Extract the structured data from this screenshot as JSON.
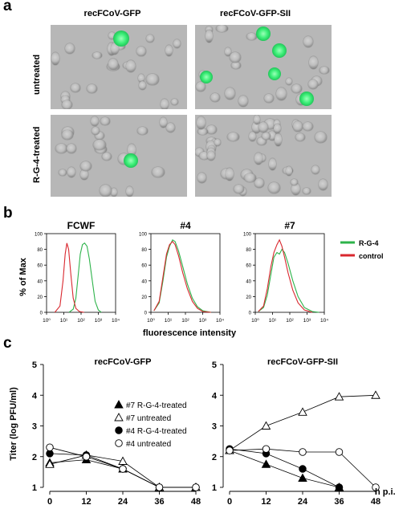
{
  "panel_a": {
    "letter": "a",
    "columns": [
      "recFCoV-GFP",
      "recFCoV-GFP-SII"
    ],
    "rows": [
      "untreated",
      "R-G-4-treated"
    ]
  },
  "panel_b": {
    "letter": "b",
    "ylabel": "% of Max",
    "xlabel": "fluorescence intensity",
    "legend": [
      {
        "name": "R-G-4",
        "color": "#2db34a"
      },
      {
        "name": "control",
        "color": "#d9272e"
      }
    ]
  },
  "panel_c": {
    "letter": "c",
    "ylabel": "Titer (log PFU/ml)",
    "xunit": "h p.i.",
    "legend": [
      "#7 R-G-4-treated",
      "#7 untreated",
      "#4 R-G-4-treated",
      "#4 untreated"
    ]
  },
  "chart_data": [
    {
      "type": "line",
      "title": "FCWF",
      "xscale": "log",
      "xlim": [
        1,
        10000
      ],
      "ylim": [
        0,
        100
      ],
      "yticks": [
        "0",
        "20",
        "40",
        "60",
        "80",
        "100"
      ],
      "xticks": [
        "10^0",
        "10^1",
        "10^2",
        "10^3",
        "10^4"
      ],
      "series": [
        {
          "name": "R-G-4",
          "color": "#2db34a",
          "points": [
            [
              20,
              0
            ],
            [
              35,
              4
            ],
            [
              50,
              18
            ],
            [
              70,
              50
            ],
            [
              90,
              74
            ],
            [
              120,
              86
            ],
            [
              160,
              88
            ],
            [
              220,
              84
            ],
            [
              300,
              68
            ],
            [
              450,
              40
            ],
            [
              650,
              14
            ],
            [
              1000,
              3
            ],
            [
              1500,
              0
            ]
          ]
        },
        {
          "name": "control",
          "color": "#d9272e",
          "points": [
            [
              3,
              0
            ],
            [
              6,
              8
            ],
            [
              9,
              40
            ],
            [
              12,
              74
            ],
            [
              15,
              88
            ],
            [
              19,
              80
            ],
            [
              25,
              50
            ],
            [
              35,
              18
            ],
            [
              50,
              5
            ],
            [
              80,
              1
            ],
            [
              150,
              0
            ]
          ]
        }
      ]
    },
    {
      "type": "line",
      "title": "#4",
      "xscale": "log",
      "xlim": [
        1,
        10000
      ],
      "ylim": [
        0,
        100
      ],
      "yticks": [
        "0",
        "20",
        "40",
        "60",
        "80",
        "100"
      ],
      "xticks": [
        "10^0",
        "10^1",
        "10^2",
        "10^3",
        "10^4"
      ],
      "series": [
        {
          "name": "R-G-4",
          "color": "#2db34a",
          "points": [
            [
              1.5,
              2
            ],
            [
              3,
              12
            ],
            [
              5,
              40
            ],
            [
              8,
              70
            ],
            [
              12,
              84
            ],
            [
              18,
              92
            ],
            [
              25,
              90
            ],
            [
              40,
              78
            ],
            [
              70,
              58
            ],
            [
              130,
              36
            ],
            [
              250,
              18
            ],
            [
              500,
              7
            ],
            [
              1000,
              2
            ],
            [
              3000,
              0
            ]
          ]
        },
        {
          "name": "control",
          "color": "#d9272e",
          "points": [
            [
              1.5,
              2
            ],
            [
              3,
              14
            ],
            [
              5,
              45
            ],
            [
              8,
              74
            ],
            [
              12,
              86
            ],
            [
              18,
              90
            ],
            [
              25,
              86
            ],
            [
              40,
              72
            ],
            [
              70,
              50
            ],
            [
              130,
              30
            ],
            [
              250,
              14
            ],
            [
              500,
              5
            ],
            [
              1000,
              1
            ],
            [
              3000,
              0
            ]
          ]
        }
      ]
    },
    {
      "type": "line",
      "title": "#7",
      "xscale": "log",
      "xlim": [
        1,
        10000
      ],
      "ylim": [
        0,
        100
      ],
      "yticks": [
        "0",
        "20",
        "40",
        "60",
        "80",
        "100"
      ],
      "xticks": [
        "10^0",
        "10^1",
        "10^2",
        "10^3",
        "10^4"
      ],
      "series": [
        {
          "name": "R-G-4",
          "color": "#2db34a",
          "points": [
            [
              1.5,
              1
            ],
            [
              3,
              6
            ],
            [
              5,
              22
            ],
            [
              8,
              48
            ],
            [
              12,
              70
            ],
            [
              18,
              76
            ],
            [
              25,
              74
            ],
            [
              35,
              80
            ],
            [
              50,
              76
            ],
            [
              80,
              62
            ],
            [
              150,
              40
            ],
            [
              300,
              20
            ],
            [
              700,
              6
            ],
            [
              2000,
              1
            ],
            [
              5000,
              0
            ]
          ]
        },
        {
          "name": "control",
          "color": "#d9272e",
          "points": [
            [
              1.5,
              1
            ],
            [
              3,
              8
            ],
            [
              5,
              30
            ],
            [
              8,
              58
            ],
            [
              12,
              76
            ],
            [
              18,
              86
            ],
            [
              25,
              92
            ],
            [
              35,
              84
            ],
            [
              50,
              70
            ],
            [
              80,
              50
            ],
            [
              150,
              28
            ],
            [
              300,
              12
            ],
            [
              700,
              3
            ],
            [
              2000,
              0
            ]
          ]
        }
      ]
    },
    {
      "type": "line",
      "title": "recFCoV-GFP",
      "x": [
        0,
        12,
        24,
        36,
        48
      ],
      "ylim": [
        1,
        5
      ],
      "yticks": [
        1,
        2,
        3,
        4,
        5
      ],
      "series": [
        {
          "name": "#7 R-G-4-treated",
          "marker": "filled-triangle",
          "x": [
            0,
            12,
            24,
            36,
            48
          ],
          "values": [
            1.8,
            1.9,
            1.6,
            1.0,
            1.0
          ]
        },
        {
          "name": "#7 untreated",
          "marker": "open-triangle",
          "x": [
            0,
            12,
            24,
            36,
            48
          ],
          "values": [
            1.75,
            2.05,
            1.85,
            1.0,
            1.0
          ]
        },
        {
          "name": "#4 R-G-4-treated",
          "marker": "filled-circle",
          "x": [
            0,
            12,
            24,
            36,
            48
          ],
          "values": [
            2.1,
            2.05,
            1.6,
            1.0,
            1.0
          ]
        },
        {
          "name": "#4 untreated",
          "marker": "open-circle",
          "x": [
            0,
            12,
            24,
            36,
            48
          ],
          "values": [
            2.3,
            2.0,
            1.6,
            1.0,
            1.0
          ]
        }
      ]
    },
    {
      "type": "line",
      "title": "recFCoV-GFP-SII",
      "x": [
        0,
        12,
        24,
        36,
        48
      ],
      "ylim": [
        1,
        5
      ],
      "yticks": [
        1,
        2,
        3,
        4,
        5
      ],
      "series": [
        {
          "name": "#7 R-G-4-treated",
          "marker": "filled-triangle",
          "x": [
            0,
            12,
            24,
            36
          ],
          "values": [
            2.2,
            1.75,
            1.3,
            1.0
          ]
        },
        {
          "name": "#7 untreated",
          "marker": "open-triangle",
          "x": [
            0,
            12,
            24,
            36,
            48
          ],
          "values": [
            2.2,
            3.0,
            3.45,
            3.95,
            4.0
          ]
        },
        {
          "name": "#4 R-G-4-treated",
          "marker": "filled-circle",
          "x": [
            0,
            12,
            24,
            36
          ],
          "values": [
            2.25,
            2.1,
            1.6,
            1.0
          ]
        },
        {
          "name": "#4 untreated",
          "marker": "open-circle",
          "x": [
            0,
            12,
            24,
            36,
            48
          ],
          "values": [
            2.2,
            2.25,
            2.15,
            2.15,
            1.0
          ]
        }
      ]
    }
  ]
}
